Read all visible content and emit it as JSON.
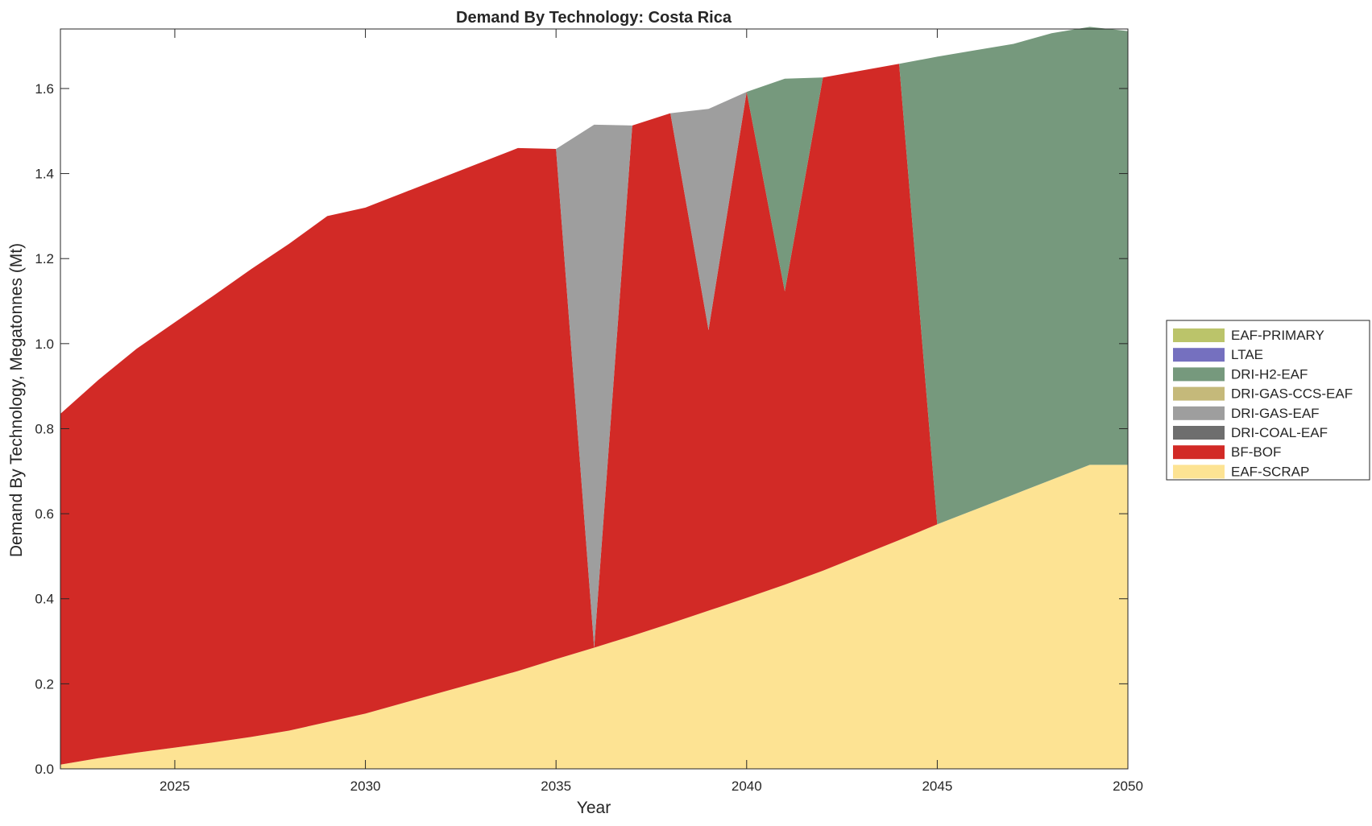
{
  "chart_data": {
    "type": "area",
    "title": "Demand By Technology: Costa Rica",
    "xlabel": "Year",
    "ylabel": "Demand By Technology, Megatonnes (Mt)",
    "xlim": [
      2022,
      2050
    ],
    "ylim": [
      0,
      1.74
    ],
    "x_ticks": [
      2025,
      2030,
      2035,
      2040,
      2045,
      2050
    ],
    "y_ticks": [
      "0.0",
      "0.2",
      "0.4",
      "0.6",
      "0.8",
      "1.0",
      "1.2",
      "1.4",
      "1.6"
    ],
    "legend_position": "right",
    "grid": false,
    "x": [
      2022,
      2023,
      2024,
      2025,
      2026,
      2027,
      2028,
      2029,
      2030,
      2031,
      2032,
      2033,
      2034,
      2035,
      2036,
      2037,
      2038,
      2039,
      2040,
      2041,
      2042,
      2043,
      2044,
      2045,
      2046,
      2047,
      2048,
      2049,
      2050
    ],
    "series": [
      {
        "name": "EAF-SCRAP",
        "color": "#FDE393",
        "values": [
          0.01,
          0.025,
          0.038,
          0.05,
          0.062,
          0.075,
          0.09,
          0.11,
          0.13,
          0.155,
          0.18,
          0.205,
          0.23,
          0.258,
          0.285,
          0.313,
          0.342,
          0.372,
          0.402,
          0.433,
          0.466,
          0.502,
          0.538,
          0.575,
          0.61,
          0.645,
          0.68,
          0.715,
          0.715
        ]
      },
      {
        "name": "BF-BOF",
        "color": "#D22A26",
        "values": [
          0.825,
          0.89,
          0.95,
          1.0,
          1.05,
          1.1,
          1.145,
          1.19,
          1.19,
          1.2,
          1.21,
          1.22,
          1.23,
          1.2,
          0.0,
          1.2,
          1.2,
          0.66,
          1.19,
          0.69,
          1.16,
          1.14,
          1.12,
          0.0,
          0.0,
          0.0,
          0.0,
          0.0,
          0.0
        ]
      },
      {
        "name": "DRI-COAL-EAF",
        "color": "#6E6E6E",
        "values": [
          0,
          0,
          0,
          0,
          0,
          0,
          0,
          0,
          0,
          0,
          0,
          0,
          0,
          0,
          0,
          0,
          0,
          0,
          0,
          0,
          0,
          0,
          0,
          0,
          0,
          0,
          0,
          0,
          0
        ]
      },
      {
        "name": "DRI-GAS-EAF",
        "color": "#9E9E9E",
        "values": [
          0,
          0,
          0,
          0,
          0,
          0,
          0,
          0,
          0,
          0,
          0,
          0,
          0,
          0,
          1.23,
          0,
          0,
          0.52,
          0,
          0,
          0,
          0,
          0,
          0,
          0,
          0,
          0,
          0,
          0
        ]
      },
      {
        "name": "DRI-GAS-CCS-EAF",
        "color": "#C5B97A",
        "values": [
          0,
          0,
          0,
          0,
          0,
          0,
          0,
          0,
          0,
          0,
          0,
          0,
          0,
          0,
          0,
          0,
          0,
          0,
          0,
          0,
          0,
          0,
          0,
          0,
          0,
          0,
          0,
          0,
          0
        ]
      },
      {
        "name": "DRI-H2-EAF",
        "color": "#76997D",
        "values": [
          0,
          0,
          0,
          0,
          0,
          0,
          0,
          0,
          0,
          0,
          0,
          0,
          0,
          0,
          0,
          0,
          0,
          0,
          0,
          0.5,
          0,
          0,
          0,
          1.1,
          1.08,
          1.06,
          1.05,
          1.03,
          1.02
        ]
      },
      {
        "name": "LTAE",
        "color": "#7570BF",
        "values": [
          0,
          0,
          0,
          0,
          0,
          0,
          0,
          0,
          0,
          0,
          0,
          0,
          0,
          0,
          0,
          0,
          0,
          0,
          0,
          0,
          0,
          0,
          0,
          0,
          0,
          0,
          0,
          0,
          0
        ]
      },
      {
        "name": "EAF-PRIMARY",
        "color": "#BBC46A",
        "values": [
          0,
          0,
          0,
          0,
          0,
          0,
          0,
          0,
          0,
          0,
          0,
          0,
          0,
          0,
          0,
          0,
          0,
          0,
          0,
          0,
          0,
          0,
          0,
          0,
          0,
          0,
          0,
          0,
          0
        ]
      }
    ],
    "legend_order": [
      "EAF-PRIMARY",
      "LTAE",
      "DRI-H2-EAF",
      "DRI-GAS-CCS-EAF",
      "DRI-GAS-EAF",
      "DRI-COAL-EAF",
      "BF-BOF",
      "EAF-SCRAP"
    ]
  }
}
